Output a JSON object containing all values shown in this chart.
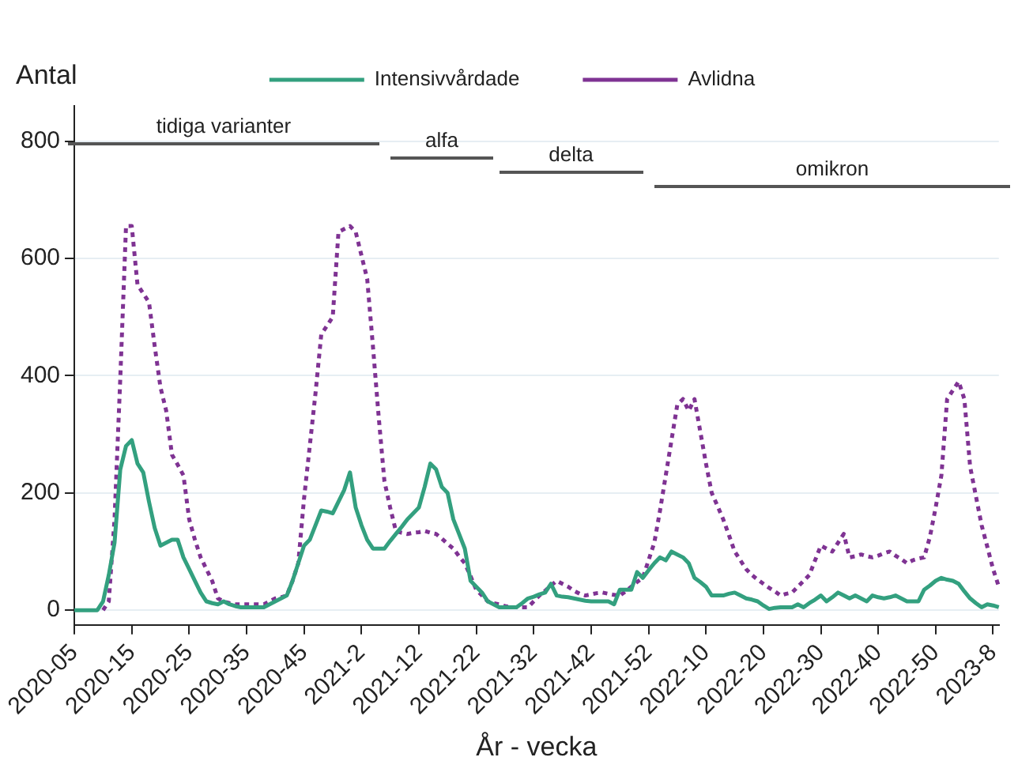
{
  "chart_data": {
    "type": "line",
    "xlabel": "År - vecka",
    "ylabel": "Antal",
    "categories": [
      "2020-05",
      null,
      null,
      null,
      null,
      null,
      null,
      null,
      null,
      null,
      "2020-15",
      null,
      null,
      null,
      null,
      null,
      null,
      null,
      null,
      null,
      "2020-25",
      null,
      null,
      null,
      null,
      null,
      null,
      null,
      null,
      null,
      "2020-35",
      null,
      null,
      null,
      null,
      null,
      null,
      null,
      null,
      null,
      "2020-45",
      null,
      null,
      null,
      null,
      null,
      null,
      null,
      null,
      null,
      "2021-2",
      null,
      null,
      null,
      null,
      null,
      null,
      null,
      null,
      null,
      "2021-12",
      null,
      null,
      null,
      null,
      null,
      null,
      null,
      null,
      null,
      "2021-22",
      null,
      null,
      null,
      null,
      null,
      null,
      null,
      null,
      null,
      "2021-32",
      null,
      null,
      null,
      null,
      null,
      null,
      null,
      null,
      null,
      "2021-42",
      null,
      null,
      null,
      null,
      null,
      null,
      null,
      null,
      null,
      "2021-52",
      null,
      null,
      null,
      null,
      null,
      null,
      null,
      null,
      null,
      "2022-10",
      null,
      null,
      null,
      null,
      null,
      null,
      null,
      null,
      null,
      "2022-20",
      null,
      null,
      null,
      null,
      null,
      null,
      null,
      null,
      null,
      "2022-30",
      null,
      null,
      null,
      null,
      null,
      null,
      null,
      null,
      null,
      "2022-40",
      null,
      null,
      null,
      null,
      null,
      null,
      null,
      null,
      null,
      "2022-50",
      null,
      null,
      null,
      null,
      null,
      null,
      null,
      null,
      null,
      "2023-8",
      null
    ],
    "ylim": [
      -25,
      860
    ],
    "yticks": [
      0,
      200,
      400,
      600,
      800
    ],
    "grid": "y",
    "legend": "top",
    "marker": "none",
    "annotations": [
      "tidiga varianter",
      "alfa",
      "delta",
      "omikron"
    ],
    "series": [
      {
        "name": "Intensivvårdade",
        "color": "#33a07f",
        "line_style": "solid",
        "values": [
          0,
          0,
          0,
          0,
          0,
          15,
          60,
          115,
          240,
          280,
          290,
          250,
          235,
          185,
          140,
          110,
          115,
          120,
          120,
          90,
          70,
          50,
          30,
          15,
          12,
          10,
          15,
          10,
          7,
          5,
          5,
          5,
          5,
          5,
          10,
          15,
          20,
          25,
          50,
          80,
          110,
          120,
          145,
          170,
          168,
          165,
          185,
          205,
          235,
          175,
          145,
          120,
          105,
          105,
          105,
          118,
          130,
          142,
          155,
          165,
          175,
          210,
          250,
          240,
          210,
          200,
          155,
          130,
          105,
          50,
          40,
          30,
          15,
          10,
          5,
          5,
          5,
          5,
          12,
          20,
          23,
          27,
          30,
          45,
          25,
          23,
          22,
          20,
          18,
          16,
          15,
          15,
          15,
          15,
          10,
          35,
          35,
          35,
          65,
          55,
          68,
          80,
          90,
          85,
          100,
          95,
          90,
          80,
          55,
          48,
          40,
          25,
          25,
          25,
          28,
          30,
          25,
          20,
          18,
          15,
          8,
          2,
          4,
          5,
          5,
          5,
          10,
          5,
          12,
          18,
          25,
          15,
          22,
          30,
          25,
          20,
          25,
          20,
          15,
          25,
          22,
          20,
          22,
          25,
          20,
          15,
          15,
          15,
          35,
          42,
          50,
          55,
          52,
          50,
          45,
          32,
          20,
          12,
          5,
          10,
          8,
          5
        ]
      },
      {
        "name": "Avlidna",
        "color": "#7f3393",
        "line_style": "dotted",
        "values": [
          null,
          null,
          null,
          null,
          null,
          0,
          15,
          155,
          395,
          655,
          655,
          555,
          540,
          525,
          450,
          380,
          340,
          265,
          248,
          230,
          155,
          120,
          90,
          70,
          50,
          20,
          15,
          12,
          10,
          10,
          10,
          10,
          10,
          10,
          15,
          20,
          22,
          25,
          50,
          80,
          190,
          280,
          370,
          470,
          485,
          500,
          645,
          650,
          655,
          645,
          605,
          565,
          450,
          330,
          220,
          175,
          135,
          132,
          130,
          132,
          133,
          135,
          132,
          130,
          122,
          113,
          105,
          92,
          80,
          58,
          35,
          25,
          15,
          12,
          10,
          7,
          5,
          5,
          5,
          5,
          15,
          25,
          33,
          42,
          50,
          45,
          40,
          33,
          28,
          25,
          27,
          29,
          30,
          28,
          26,
          25,
          32,
          40,
          48,
          55,
          85,
          115,
          170,
          230,
          290,
          350,
          360,
          340,
          360,
          305,
          250,
          200,
          178,
          155,
          128,
          100,
          85,
          70,
          60,
          52,
          45,
          38,
          32,
          25,
          28,
          30,
          40,
          50,
          60,
          85,
          110,
          105,
          100,
          115,
          130,
          90,
          92,
          95,
          92,
          90,
          93,
          97,
          100,
          93,
          87,
          80,
          85,
          88,
          90,
          125,
          175,
          230,
          360,
          375,
          390,
          360,
          245,
          195,
          145,
          108,
          70,
          40
        ]
      }
    ]
  }
}
